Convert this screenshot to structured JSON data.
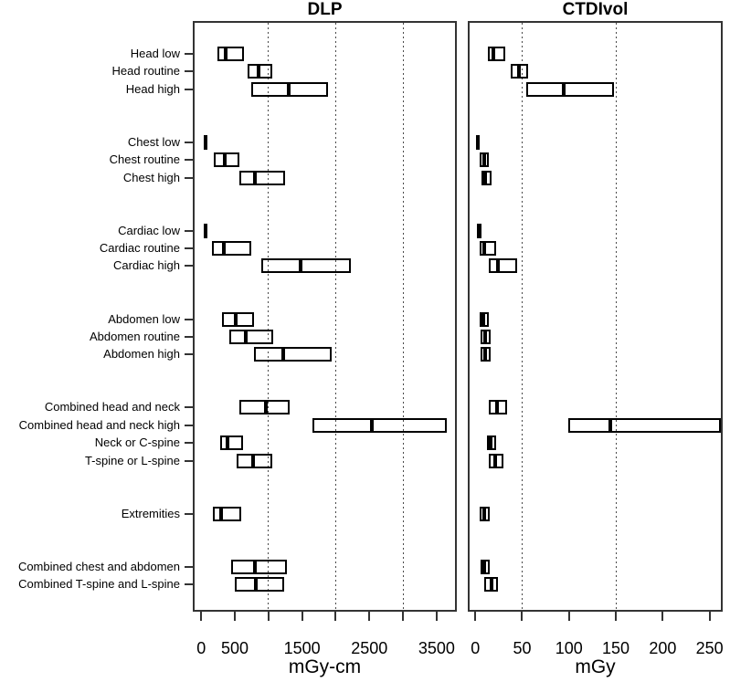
{
  "figure_title": "",
  "colors": {
    "box_border": "#000000",
    "median_line": "#000000",
    "gridline": "#4a4a4a",
    "axis": "#333333",
    "text": "#000000",
    "background": "#ffffff"
  },
  "chart_data": [
    {
      "type": "boxplot",
      "orientation": "horizontal",
      "title": "DLP",
      "xlabel": "mGy-cm",
      "xlim": [
        -125,
        3800
      ],
      "grid": "dotted-vertical",
      "gridlines": [
        1000,
        2000,
        3000
      ],
      "x_ticks": [
        {
          "v": 0,
          "label": "0"
        },
        {
          "v": 500,
          "label": "500"
        },
        {
          "v": 1000,
          "label": ""
        },
        {
          "v": 1500,
          "label": "1500"
        },
        {
          "v": 2000,
          "label": ""
        },
        {
          "v": 2500,
          "label": "2500"
        },
        {
          "v": 3000,
          "label": ""
        },
        {
          "v": 3500,
          "label": "3500"
        }
      ],
      "categories": [
        "Head low",
        "Head routine",
        "Head high",
        "Chest low",
        "Chest routine",
        "Chest high",
        "Cardiac low",
        "Cardiac routine",
        "Cardiac high",
        "Abdomen low",
        "Abdomen routine",
        "Abdomen high",
        "Combined head and neck",
        "Combined head and neck high",
        "Neck or C-spine",
        "T-spine or L-spine",
        "Extremities",
        "Combined chest and abdomen",
        "Combined T-spine and L-spine"
      ],
      "row_slots": [
        0,
        1,
        2,
        5,
        6,
        7,
        10,
        11,
        12,
        15,
        16,
        17,
        20,
        21,
        22,
        23,
        26,
        29,
        30
      ],
      "values_legend": [
        "q1",
        "median",
        "q3"
      ],
      "values": [
        [
          235,
          360,
          630
        ],
        [
          690,
          850,
          1050
        ],
        [
          750,
          1300,
          1880
        ],
        [
          35,
          60,
          90
        ],
        [
          190,
          345,
          565
        ],
        [
          570,
          805,
          1245
        ],
        [
          35,
          65,
          95
        ],
        [
          155,
          335,
          750
        ],
        [
          895,
          1480,
          2220
        ],
        [
          315,
          510,
          785
        ],
        [
          420,
          660,
          1065
        ],
        [
          790,
          1220,
          1940
        ],
        [
          570,
          960,
          1320
        ],
        [
          1660,
          2540,
          3650
        ],
        [
          285,
          390,
          620
        ],
        [
          525,
          765,
          1060
        ],
        [
          170,
          290,
          600
        ],
        [
          450,
          805,
          1280
        ],
        [
          495,
          810,
          1235
        ]
      ]
    },
    {
      "type": "boxplot",
      "orientation": "horizontal",
      "title": "CTDIvol",
      "xlabel": "mGy",
      "xlim": [
        -8,
        264
      ],
      "grid": "dotted-vertical",
      "gridlines": [
        50,
        150
      ],
      "x_ticks": [
        {
          "v": 0,
          "label": "0"
        },
        {
          "v": 50,
          "label": "50"
        },
        {
          "v": 100,
          "label": "100"
        },
        {
          "v": 150,
          "label": "150"
        },
        {
          "v": 200,
          "label": "200"
        },
        {
          "v": 250,
          "label": "250"
        }
      ],
      "categories": [
        "Head low",
        "Head routine",
        "Head high",
        "Chest low",
        "Chest routine",
        "Chest high",
        "Cardiac low",
        "Cardiac routine",
        "Cardiac high",
        "Abdomen low",
        "Abdomen routine",
        "Abdomen high",
        "Combined head and neck",
        "Combined head and neck high",
        "Neck or C-spine",
        "T-spine or L-spine",
        "Extremities",
        "Combined chest and abdomen",
        "Combined T-spine and L-spine"
      ],
      "row_slots": [
        0,
        1,
        2,
        5,
        6,
        7,
        10,
        11,
        12,
        15,
        16,
        17,
        20,
        21,
        22,
        23,
        26,
        29,
        30
      ],
      "values_legend": [
        "q1",
        "median",
        "q3"
      ],
      "values": [
        [
          13,
          19,
          32
        ],
        [
          38,
          47,
          56
        ],
        [
          54,
          94,
          148
        ],
        [
          1,
          2,
          4
        ],
        [
          5,
          10,
          14
        ],
        [
          7,
          11,
          17
        ],
        [
          2,
          4,
          7
        ],
        [
          5,
          10,
          22
        ],
        [
          14,
          24,
          45
        ],
        [
          5,
          9,
          14
        ],
        [
          6,
          11,
          16
        ],
        [
          6,
          11,
          16
        ],
        [
          14,
          23,
          34
        ],
        [
          99,
          144,
          262
        ],
        [
          12,
          16,
          22
        ],
        [
          14,
          21,
          30
        ],
        [
          5,
          10,
          15
        ],
        [
          6,
          10,
          15
        ],
        [
          10,
          17,
          24
        ]
      ]
    }
  ]
}
